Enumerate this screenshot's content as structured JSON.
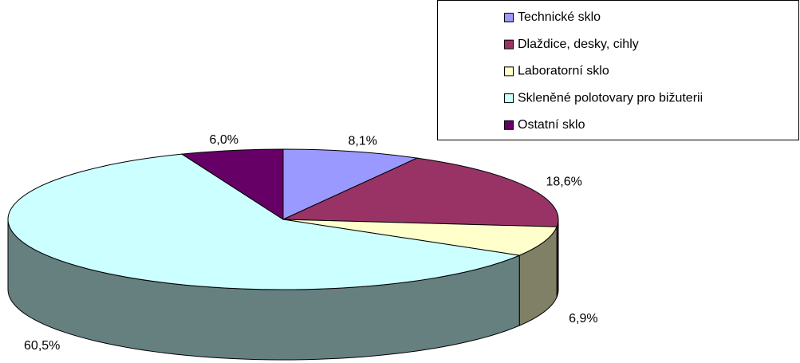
{
  "chart_data": {
    "type": "pie",
    "categories": [
      "Technické sklo",
      "Dlaždice, desky, cihly",
      "Laboratorní sklo",
      "Skleněné polotovary pro bižuterii",
      "Ostatní sklo"
    ],
    "values": [
      8.1,
      18.6,
      6.9,
      60.5,
      6.0
    ],
    "value_labels": [
      "8,1%",
      "18,6%",
      "6,9%",
      "60,5%",
      "6,0%"
    ],
    "colors": [
      "#9999ff",
      "#993366",
      "#ffffcc",
      "#ccffff",
      "#660066"
    ],
    "legend": "top-right"
  }
}
